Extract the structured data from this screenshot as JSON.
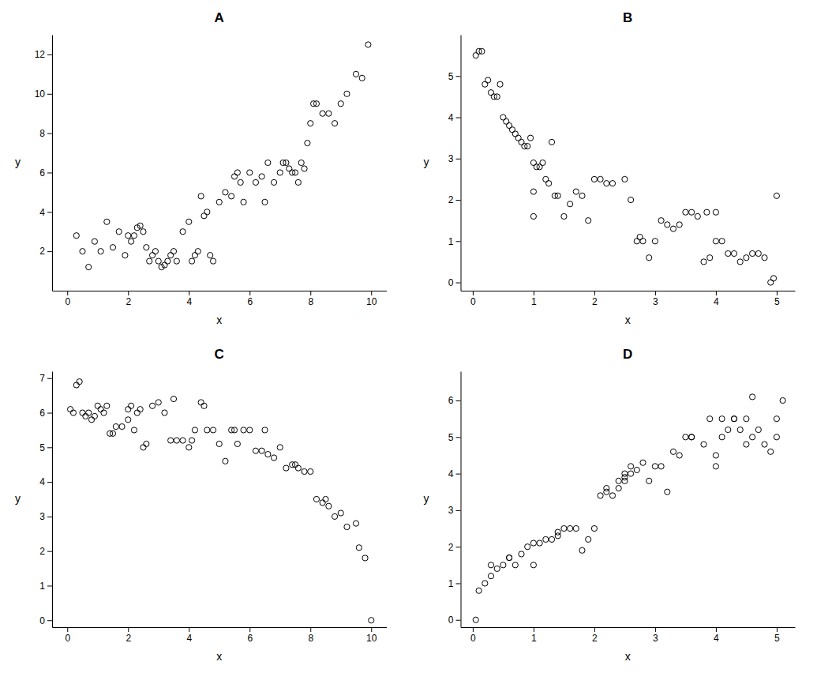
{
  "chart_data": [
    {
      "type": "scatter",
      "title": "A",
      "x_label": "x",
      "y_label": "y",
      "xlim": [
        -0.5,
        10.5
      ],
      "ylim": [
        0,
        13
      ],
      "xticks": [
        0,
        2,
        4,
        6,
        8,
        10
      ],
      "yticks": [
        2,
        4,
        6,
        8,
        10,
        12
      ],
      "grid": false,
      "color": "#000000",
      "marker": "open-circle",
      "x": [
        0.3,
        0.5,
        0.7,
        0.9,
        1.1,
        1.3,
        1.5,
        1.7,
        1.9,
        2.0,
        2.1,
        2.2,
        2.3,
        2.4,
        2.5,
        2.6,
        2.7,
        2.8,
        2.9,
        3.0,
        3.1,
        3.2,
        3.3,
        3.4,
        3.5,
        3.6,
        3.8,
        4.0,
        4.1,
        4.2,
        4.3,
        4.4,
        4.5,
        4.6,
        4.7,
        4.8,
        5.0,
        5.2,
        5.4,
        5.5,
        5.6,
        5.7,
        5.8,
        6.0,
        6.2,
        6.4,
        6.5,
        6.6,
        6.8,
        7.0,
        7.1,
        7.2,
        7.3,
        7.4,
        7.5,
        7.6,
        7.7,
        7.8,
        7.9,
        8.0,
        8.1,
        8.2,
        8.4,
        8.6,
        8.8,
        9.0,
        9.2,
        9.5,
        9.7,
        9.9
      ],
      "values": [
        2.8,
        2.0,
        1.2,
        2.5,
        2.0,
        3.5,
        2.2,
        3.0,
        1.8,
        2.8,
        2.5,
        2.8,
        3.2,
        3.3,
        3.0,
        2.2,
        1.5,
        1.8,
        2.0,
        1.5,
        1.2,
        1.3,
        1.5,
        1.8,
        2.0,
        1.5,
        3.0,
        3.5,
        1.5,
        1.8,
        2.0,
        4.8,
        3.8,
        4.0,
        1.8,
        1.5,
        4.5,
        5.0,
        4.8,
        5.8,
        6.0,
        5.5,
        4.5,
        6.0,
        5.5,
        5.8,
        4.5,
        6.5,
        5.5,
        6.0,
        6.5,
        6.5,
        6.2,
        6.0,
        6.0,
        5.5,
        6.5,
        6.2,
        7.5,
        8.5,
        9.5,
        9.5,
        9.0,
        9.0,
        8.5,
        9.5,
        10.0,
        11.0,
        10.8,
        12.5
      ]
    },
    {
      "type": "scatter",
      "title": "B",
      "x_label": "x",
      "y_label": "y",
      "xlim": [
        -0.2,
        5.3
      ],
      "ylim": [
        -0.2,
        6.0
      ],
      "xticks": [
        0,
        1,
        2,
        3,
        4,
        5
      ],
      "yticks": [
        0,
        1,
        2,
        3,
        4,
        5
      ],
      "grid": false,
      "color": "#000000",
      "marker": "open-circle",
      "x": [
        0.05,
        0.1,
        0.15,
        0.2,
        0.25,
        0.3,
        0.35,
        0.4,
        0.45,
        0.5,
        0.55,
        0.6,
        0.65,
        0.7,
        0.75,
        0.8,
        0.85,
        0.9,
        0.95,
        1.0,
        1.0,
        1.0,
        1.05,
        1.1,
        1.15,
        1.2,
        1.25,
        1.3,
        1.35,
        1.4,
        1.5,
        1.6,
        1.7,
        1.8,
        1.9,
        2.0,
        2.1,
        2.2,
        2.3,
        2.5,
        2.6,
        2.7,
        2.75,
        2.8,
        2.9,
        3.0,
        3.1,
        3.2,
        3.3,
        3.4,
        3.5,
        3.6,
        3.7,
        3.8,
        3.85,
        3.9,
        4.0,
        4.0,
        4.1,
        4.2,
        4.3,
        4.4,
        4.5,
        4.6,
        4.7,
        4.8,
        4.9,
        4.95,
        5.0
      ],
      "values": [
        5.5,
        5.6,
        5.6,
        4.8,
        4.9,
        4.6,
        4.5,
        4.5,
        4.8,
        4.0,
        3.9,
        3.8,
        3.7,
        3.6,
        3.5,
        3.4,
        3.3,
        3.3,
        3.5,
        2.9,
        2.2,
        1.6,
        2.8,
        2.8,
        2.9,
        2.5,
        2.4,
        3.4,
        2.1,
        2.1,
        1.6,
        1.9,
        2.2,
        2.1,
        1.5,
        2.5,
        2.5,
        2.4,
        2.4,
        2.5,
        2.0,
        1.0,
        1.1,
        1.0,
        0.6,
        1.0,
        1.5,
        1.4,
        1.3,
        1.4,
        1.7,
        1.7,
        1.6,
        0.5,
        1.7,
        0.6,
        1.7,
        1.0,
        1.0,
        0.7,
        0.7,
        0.5,
        0.6,
        0.7,
        0.7,
        0.6,
        0.0,
        0.1,
        2.1
      ]
    },
    {
      "type": "scatter",
      "title": "C",
      "x_label": "x",
      "y_label": "y",
      "xlim": [
        -0.5,
        10.5
      ],
      "ylim": [
        -0.2,
        7.2
      ],
      "xticks": [
        0,
        2,
        4,
        6,
        8,
        10
      ],
      "yticks": [
        0,
        1,
        2,
        3,
        4,
        5,
        6,
        7
      ],
      "grid": false,
      "color": "#000000",
      "marker": "open-circle",
      "x": [
        0.1,
        0.2,
        0.3,
        0.4,
        0.5,
        0.6,
        0.7,
        0.8,
        0.9,
        1.0,
        1.1,
        1.2,
        1.3,
        1.4,
        1.5,
        1.6,
        1.8,
        2.0,
        2.0,
        2.1,
        2.2,
        2.3,
        2.4,
        2.5,
        2.6,
        2.8,
        3.0,
        3.2,
        3.4,
        3.5,
        3.6,
        3.8,
        4.0,
        4.1,
        4.2,
        4.4,
        4.5,
        4.6,
        4.8,
        5.0,
        5.2,
        5.4,
        5.5,
        5.6,
        5.8,
        6.0,
        6.2,
        6.4,
        6.5,
        6.6,
        6.8,
        7.0,
        7.2,
        7.4,
        7.5,
        7.6,
        7.8,
        8.0,
        8.2,
        8.4,
        8.5,
        8.6,
        8.8,
        9.0,
        9.2,
        9.5,
        9.6,
        9.8,
        10.0
      ],
      "values": [
        6.1,
        6.0,
        6.8,
        6.9,
        6.0,
        5.9,
        6.0,
        5.8,
        5.9,
        6.2,
        6.1,
        6.0,
        6.2,
        5.4,
        5.4,
        5.6,
        5.6,
        5.8,
        6.1,
        6.2,
        5.5,
        6.0,
        6.1,
        5.0,
        5.1,
        6.2,
        6.3,
        6.0,
        5.2,
        6.4,
        5.2,
        5.2,
        5.0,
        5.2,
        5.5,
        6.3,
        6.2,
        5.5,
        5.5,
        5.1,
        4.6,
        5.5,
        5.5,
        5.1,
        5.5,
        5.5,
        4.9,
        4.9,
        5.5,
        4.8,
        4.7,
        5.0,
        4.4,
        4.5,
        4.5,
        4.4,
        4.3,
        4.3,
        3.5,
        3.4,
        3.5,
        3.3,
        3.0,
        3.1,
        2.7,
        2.8,
        2.1,
        1.8,
        0.0
      ]
    },
    {
      "type": "scatter",
      "title": "D",
      "x_label": "x",
      "y_label": "y",
      "xlim": [
        -0.2,
        5.3
      ],
      "ylim": [
        -0.2,
        6.8
      ],
      "xticks": [
        0,
        1,
        2,
        3,
        4,
        5
      ],
      "yticks": [
        0,
        1,
        2,
        3,
        4,
        5,
        6
      ],
      "grid": false,
      "color": "#000000",
      "marker": "open-circle",
      "x": [
        0.05,
        0.1,
        0.2,
        0.3,
        0.4,
        0.5,
        0.6,
        0.7,
        0.8,
        0.9,
        1.0,
        1.0,
        1.1,
        1.2,
        1.3,
        1.4,
        1.5,
        1.6,
        1.8,
        1.9,
        2.0,
        2.1,
        2.2,
        2.3,
        2.4,
        2.5,
        2.5,
        2.5,
        2.6,
        2.7,
        2.8,
        3.0,
        3.2,
        3.4,
        3.5,
        3.6,
        3.8,
        4.0,
        4.0,
        4.1,
        4.2,
        4.3,
        4.4,
        4.5,
        4.5,
        4.6,
        4.7,
        4.8,
        4.9,
        5.0,
        5.0,
        5.1,
        0.3,
        0.6,
        1.4,
        1.7,
        2.2,
        2.4,
        2.6,
        2.9,
        3.1,
        3.3,
        3.6,
        3.9,
        4.1,
        4.3,
        4.6
      ],
      "values": [
        0.0,
        0.8,
        1.0,
        1.2,
        1.4,
        1.5,
        1.7,
        1.5,
        1.8,
        2.0,
        2.1,
        1.5,
        2.1,
        2.2,
        2.2,
        2.3,
        2.5,
        2.5,
        1.9,
        2.2,
        2.5,
        3.4,
        3.5,
        3.4,
        3.6,
        3.8,
        4.0,
        3.9,
        4.0,
        4.1,
        4.3,
        4.2,
        3.5,
        4.5,
        5.0,
        5.0,
        4.8,
        4.5,
        4.2,
        5.0,
        5.2,
        5.5,
        5.2,
        5.5,
        4.8,
        5.0,
        5.2,
        4.8,
        4.6,
        5.5,
        5.0,
        6.0,
        1.5,
        1.7,
        2.4,
        2.5,
        3.6,
        3.8,
        4.2,
        3.8,
        4.2,
        4.6,
        5.0,
        5.5,
        5.5,
        5.5,
        6.1
      ]
    }
  ]
}
